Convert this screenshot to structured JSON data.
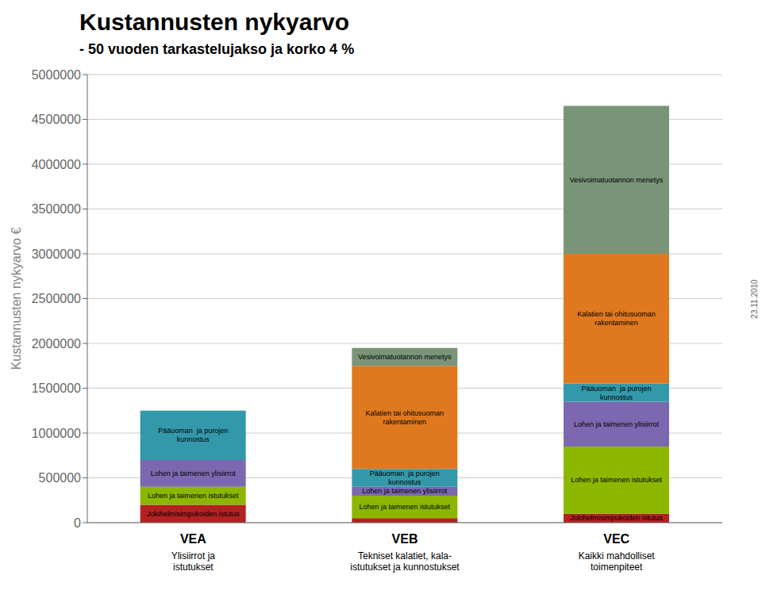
{
  "chart_data": {
    "type": "bar",
    "stacked": true,
    "title": "Kustannusten nykyarvo",
    "subtitle": "- 50 vuoden tarkastelujakso ja korko 4 %",
    "ylabel": "Kustannusten nykyarvo €",
    "categories": [
      "VEA",
      "VEB",
      "VEC"
    ],
    "category_subtitles": [
      "Ylisiirrot ja\nistutukset",
      "Tekniset kalatiet, kala-\nistutukset ja kunnostukset",
      "Kaikki mahdolliset\ntoimenpiteet"
    ],
    "annotations": [
      "23.11.2010"
    ],
    "series": [
      {
        "name": "Jokihelmisimpukoiden istutus",
        "color": "#B22222",
        "values": [
          200000,
          50000,
          100000
        ],
        "segment_labels": [
          "Jokihelmisimpukoiden istutus",
          null,
          "Jokihelmisimpukoiden istutus"
        ]
      },
      {
        "name": "Lohen ja taimenen istutukset",
        "color": "#8DB600",
        "values": [
          200000,
          250000,
          750000
        ],
        "segment_labels": [
          "Lohen ja taimenen istutukset",
          "Lohen ja taimenen istutukset",
          "Lohen ja taimenen istutukset"
        ]
      },
      {
        "name": "Lohen ja taimenen ylisiirrot",
        "color": "#7B68B0",
        "values": [
          300000,
          100000,
          500000
        ],
        "segment_labels": [
          "Lohen ja taimenen ylisiirrot",
          "Lohen ja taimenen ylisiirrot",
          "Lohen ja taimenen ylisiirrot"
        ]
      },
      {
        "name": "Pääuoman  ja purojen\nkunnostus",
        "color": "#3399AA",
        "values": [
          550000,
          200000,
          200000
        ],
        "segment_labels": [
          "Pääuoman  ja purojen\nkunnostus",
          "Pääuoman  ja purojen\nkunnostus",
          "Pääuoman  ja purojen\nkunnostus"
        ]
      },
      {
        "name": "Kalatien tai ohitusuoman\nrakentaminen",
        "color": "#E07820",
        "values": [
          0,
          1150000,
          1450000
        ],
        "segment_labels": [
          null,
          "Kalatien tai ohitusuoman\nrakentaminen",
          "Kalatien tai ohitusuoman\nrakentaminen"
        ]
      },
      {
        "name": "Vesivoimatuotannon menetys",
        "color": "#7A9478",
        "values": [
          0,
          200000,
          1650000
        ],
        "segment_labels": [
          null,
          "Vesivoimatuotannon menetys",
          "Vesivoimatuotannon menetys"
        ]
      }
    ],
    "ylim": [
      0,
      5000000
    ],
    "yticks": [
      0,
      500000,
      1000000,
      1500000,
      2000000,
      2500000,
      3000000,
      3500000,
      4000000,
      4500000,
      5000000
    ],
    "grid": true
  }
}
